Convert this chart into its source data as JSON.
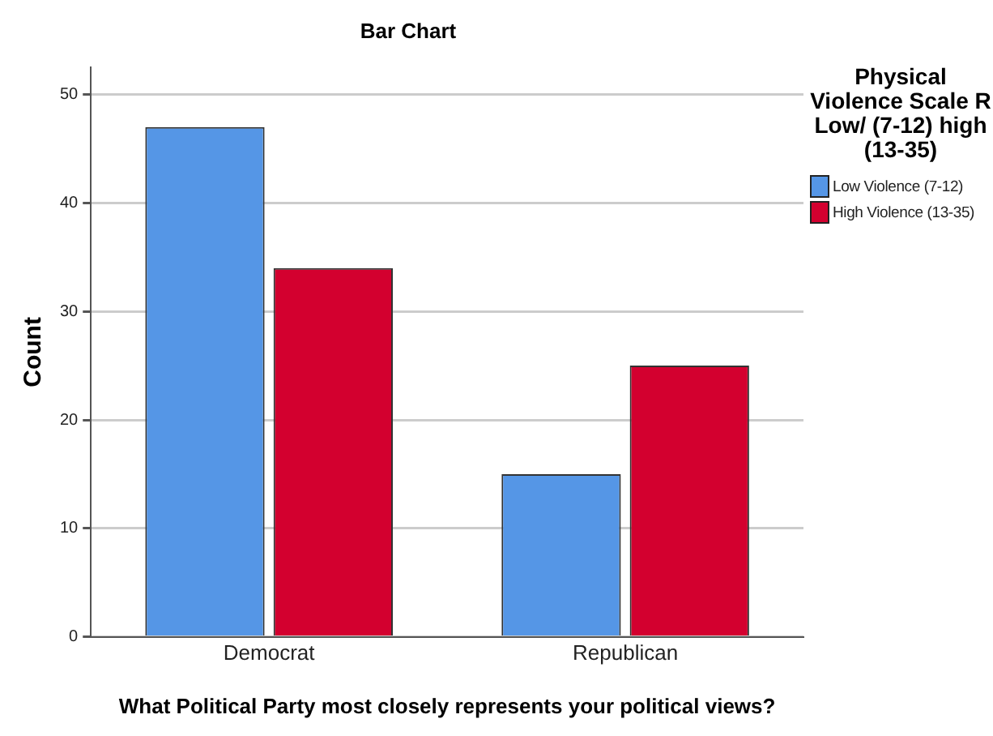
{
  "chart_data": {
    "type": "bar",
    "title": "Bar Chart",
    "xlabel": "What Political Party most closely represents your political views?",
    "ylabel": "Count",
    "legend_title": "Physical Violence Scale R Low/ (7-12) high (13-35)",
    "categories": [
      "Democrat",
      "Republican"
    ],
    "series": [
      {
        "name": "Low Violence (7-12)",
        "color": "#5596e6",
        "values": [
          47,
          15
        ]
      },
      {
        "name": "High Violence (13-35)",
        "color": "#d3002f",
        "values": [
          34,
          25
        ]
      }
    ],
    "ylim": [
      0,
      52.5
    ],
    "yticks": [
      0,
      10,
      20,
      30,
      40,
      50
    ],
    "grid": "y",
    "legend": "right"
  }
}
